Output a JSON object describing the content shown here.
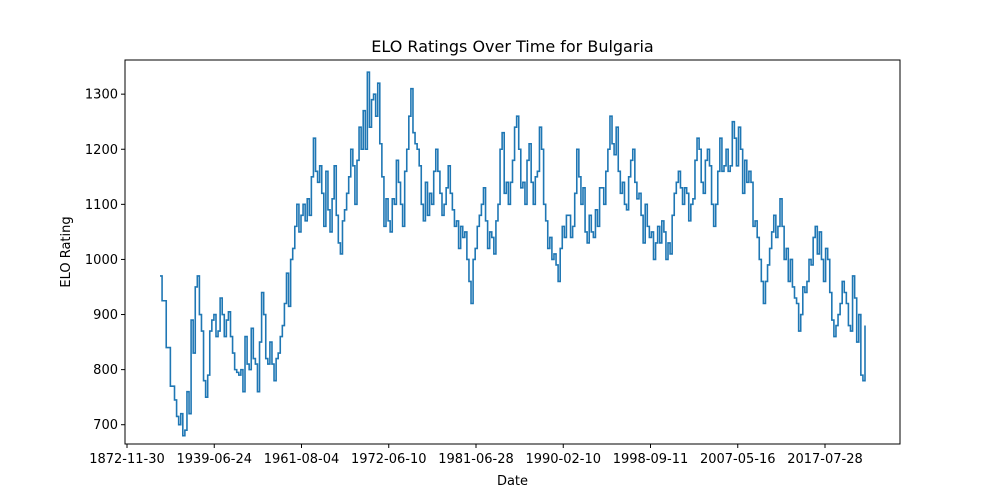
{
  "chart_data": {
    "type": "line",
    "title": "ELO Ratings Over Time for Bulgaria",
    "xlabel": "Date",
    "ylabel": "ELO Rating",
    "x_tick_labels": [
      "1872-11-30",
      "1939-06-24",
      "1961-08-04",
      "1972-06-10",
      "1981-06-28",
      "1990-02-10",
      "1998-09-11",
      "2007-05-16",
      "2017-07-28"
    ],
    "y_ticks": [
      700,
      800,
      900,
      1000,
      1100,
      1200,
      1300
    ],
    "ylim": [
      665,
      1362
    ],
    "grid": false,
    "line_color": "#1f77b4",
    "series": [
      {
        "values": [
          970,
          925,
          925,
          840,
          840,
          770,
          770,
          745,
          715,
          700,
          720,
          680,
          690,
          760,
          720,
          890,
          830,
          950,
          970,
          900,
          870,
          780,
          750,
          790,
          870,
          890,
          900,
          860,
          870,
          930,
          900,
          860,
          890,
          905,
          860,
          830,
          800,
          795,
          790,
          800,
          760,
          860,
          810,
          800,
          875,
          820,
          810,
          760,
          850,
          940,
          900,
          820,
          810,
          850,
          810,
          780,
          820,
          830,
          860,
          880,
          920,
          975,
          915,
          1000,
          1020,
          1060,
          1100,
          1050,
          1080,
          1100,
          1070,
          1110,
          1080,
          1150,
          1220,
          1160,
          1140,
          1170,
          1120,
          1060,
          1160,
          1090,
          1050,
          1110,
          1170,
          1080,
          1030,
          1010,
          1070,
          1090,
          1120,
          1150,
          1200,
          1170,
          1100,
          1180,
          1240,
          1200,
          1270,
          1200,
          1340,
          1240,
          1290,
          1300,
          1260,
          1320,
          1210,
          1150,
          1060,
          1110,
          1070,
          1050,
          1110,
          1100,
          1180,
          1140,
          1100,
          1060,
          1160,
          1200,
          1260,
          1310,
          1230,
          1210,
          1200,
          1170,
          1100,
          1070,
          1140,
          1080,
          1120,
          1100,
          1160,
          1200,
          1160,
          1120,
          1080,
          1100,
          1130,
          1170,
          1120,
          1090,
          1060,
          1070,
          1020,
          1060,
          1040,
          1050,
          1000,
          960,
          920,
          1000,
          1020,
          1060,
          1080,
          1100,
          1130,
          1070,
          1020,
          1050,
          1040,
          1010,
          1070,
          1100,
          1200,
          1230,
          1120,
          1140,
          1100,
          1140,
          1180,
          1240,
          1260,
          1200,
          1130,
          1140,
          1100,
          1180,
          1210,
          1140,
          1100,
          1150,
          1160,
          1240,
          1200,
          1100,
          1070,
          1020,
          1040,
          1000,
          1010,
          990,
          960,
          1020,
          1060,
          1040,
          1080,
          1080,
          1040,
          1060,
          1120,
          1200,
          1150,
          1100,
          1130,
          1050,
          1030,
          1080,
          1050,
          1040,
          1090,
          1060,
          1130,
          1130,
          1100,
          1160,
          1200,
          1260,
          1210,
          1190,
          1240,
          1160,
          1120,
          1140,
          1100,
          1090,
          1150,
          1180,
          1200,
          1140,
          1110,
          1120,
          1080,
          1030,
          1100,
          1060,
          1040,
          1050,
          1000,
          1030,
          1060,
          1030,
          1070,
          1050,
          1000,
          1030,
          1010,
          1080,
          1120,
          1140,
          1160,
          1130,
          1100,
          1130,
          1120,
          1070,
          1100,
          1110,
          1180,
          1220,
          1200,
          1140,
          1120,
          1180,
          1200,
          1170,
          1100,
          1060,
          1100,
          1160,
          1220,
          1160,
          1170,
          1200,
          1160,
          1170,
          1250,
          1220,
          1170,
          1240,
          1200,
          1120,
          1180,
          1140,
          1160,
          1140,
          1060,
          1070,
          1040,
          1000,
          960,
          920,
          960,
          990,
          1020,
          1050,
          1080,
          1040,
          1060,
          1110,
          1060,
          1000,
          1020,
          960,
          1000,
          950,
          930,
          920,
          870,
          900,
          950,
          940,
          960,
          1000,
          990,
          1040,
          1060,
          1010,
          1050,
          1000,
          960,
          1020,
          1000,
          940,
          890,
          860,
          880,
          900,
          920,
          960,
          940,
          920,
          880,
          870,
          970,
          930,
          850,
          900,
          790,
          780,
          880
        ]
      }
    ]
  }
}
